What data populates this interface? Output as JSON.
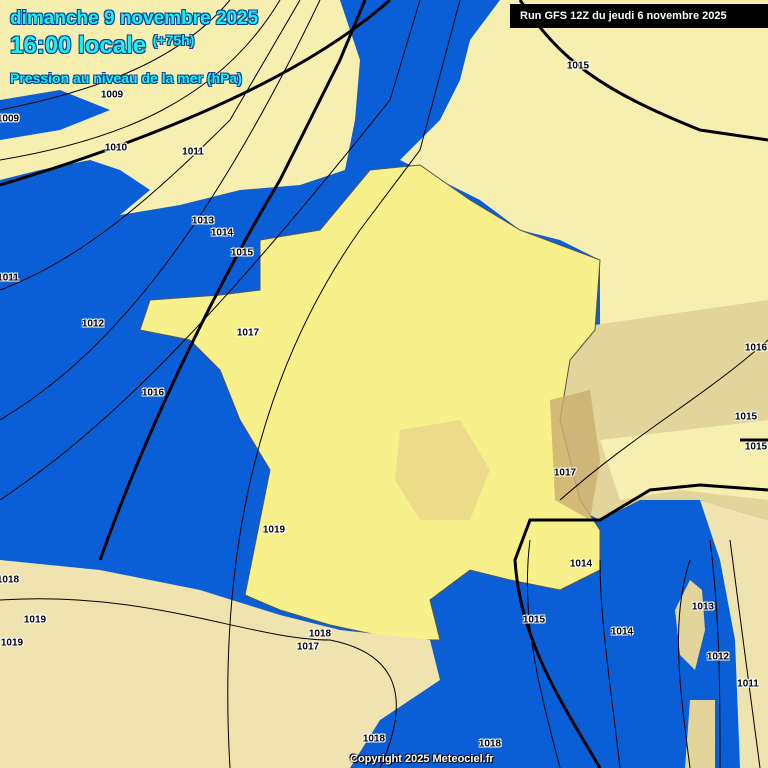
{
  "header": {
    "date": "dimanche 9 novembre 2025",
    "time": "16:00 locale",
    "lead": "(+75h)",
    "parameter": "Pression au niveau de la mer (hPa)"
  },
  "run": "Run GFS 12Z du jeudi 6 novembre 2025",
  "copyright": "Copyright 2025 Meteociel.fr",
  "colors": {
    "sea": "#0b5fd6",
    "land": "#f6efb0",
    "france": "#f8f08a",
    "relief": "#b89a60",
    "title": "#19f0f0"
  },
  "isobar_labels": [
    "1009",
    "1009",
    "1010",
    "1011",
    "1013",
    "1014",
    "1015",
    "1011",
    "1012",
    "1017",
    "1016",
    "1019",
    "1018",
    "1019",
    "1019",
    "1018",
    "1017",
    "1015",
    "1014",
    "1013",
    "1012",
    "1011",
    "1018",
    "1018",
    "1015",
    "1016",
    "1015",
    "1015",
    "1017",
    "1014"
  ]
}
